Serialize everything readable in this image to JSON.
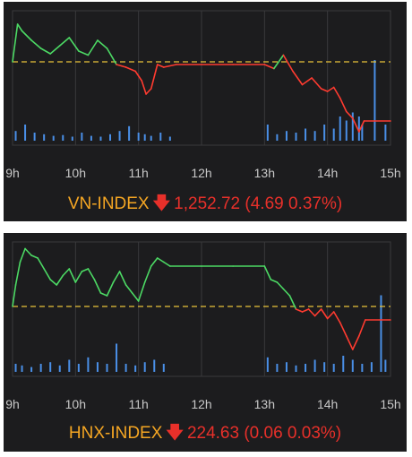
{
  "chart_data": [
    {
      "type": "line",
      "title": "VN-INDEX",
      "direction_icon": "arrow-down-icon",
      "value_text": "1,252.72 (4.69 0.37%)",
      "x_tick_labels": [
        "9h",
        "10h",
        "11h",
        "12h",
        "13h",
        "14h",
        "15h"
      ],
      "x_range_hours": [
        9,
        15
      ],
      "reference_level": 0.62,
      "grid": true,
      "colors": {
        "up": "#4cd964",
        "down": "#ff3b30",
        "reference": "#e8c23a",
        "volume": "#4a8fe7",
        "title": "#f5a623",
        "value": "#e8302a"
      },
      "series": [
        {
          "x": [
            9.0,
            9.08,
            9.15,
            9.3,
            9.45,
            9.6,
            9.75,
            9.9,
            10.05,
            10.2,
            10.35,
            10.5,
            10.65,
            10.8,
            10.95,
            11.05,
            11.12,
            11.2,
            11.3,
            11.4,
            11.6,
            12.0,
            12.5,
            13.0,
            13.15,
            13.3,
            13.45,
            13.6,
            13.75,
            13.9,
            14.0,
            14.1,
            14.2,
            14.3,
            14.4,
            14.5,
            14.58,
            15.0
          ],
          "y": [
            0.62,
            0.9,
            0.85,
            0.78,
            0.72,
            0.68,
            0.74,
            0.8,
            0.7,
            0.67,
            0.78,
            0.72,
            0.6,
            0.58,
            0.55,
            0.48,
            0.38,
            0.42,
            0.6,
            0.58,
            0.6,
            0.6,
            0.6,
            0.6,
            0.57,
            0.67,
            0.55,
            0.45,
            0.5,
            0.42,
            0.4,
            0.43,
            0.35,
            0.25,
            0.2,
            0.1,
            0.18,
            0.18
          ]
        }
      ],
      "volume": {
        "x": [
          9.05,
          9.2,
          9.35,
          9.5,
          9.65,
          9.8,
          9.95,
          10.1,
          10.25,
          10.4,
          10.55,
          10.7,
          10.85,
          11.0,
          11.1,
          11.2,
          11.35,
          11.5,
          13.05,
          13.2,
          13.35,
          13.5,
          13.65,
          13.8,
          13.95,
          14.1,
          14.2,
          14.3,
          14.4,
          14.5,
          14.55,
          14.75,
          14.92
        ],
        "y": [
          0.12,
          0.2,
          0.1,
          0.08,
          0.06,
          0.07,
          0.05,
          0.1,
          0.06,
          0.05,
          0.08,
          0.12,
          0.18,
          0.1,
          0.08,
          0.06,
          0.1,
          0.05,
          0.2,
          0.08,
          0.12,
          0.1,
          0.15,
          0.12,
          0.2,
          0.15,
          0.3,
          0.25,
          0.35,
          0.3,
          0.2,
          1.0,
          0.2
        ]
      }
    },
    {
      "type": "line",
      "title": "HNX-INDEX",
      "direction_icon": "arrow-down-icon",
      "value_text": "224.63 (0.06 0.03%)",
      "x_tick_labels": [
        "9h",
        "10h",
        "11h",
        "12h",
        "13h",
        "14h",
        "15h"
      ],
      "x_range_hours": [
        9,
        15
      ],
      "reference_level": 0.52,
      "grid": true,
      "colors": {
        "up": "#4cd964",
        "down": "#ff3b30",
        "reference": "#e8c23a",
        "volume": "#4a8fe7",
        "title": "#f5a623",
        "value": "#e8302a"
      },
      "series": [
        {
          "x": [
            9.0,
            9.05,
            9.12,
            9.2,
            9.3,
            9.4,
            9.5,
            9.6,
            9.7,
            9.8,
            9.9,
            10.0,
            10.1,
            10.2,
            10.3,
            10.4,
            10.5,
            10.6,
            10.7,
            10.8,
            10.9,
            11.0,
            11.1,
            11.2,
            11.3,
            11.4,
            11.5,
            12.0,
            12.5,
            13.0,
            13.1,
            13.2,
            13.3,
            13.4,
            13.5,
            13.6,
            13.7,
            13.8,
            13.9,
            14.0,
            14.1,
            14.2,
            14.3,
            14.4,
            14.5,
            14.6,
            15.0
          ],
          "y": [
            0.52,
            0.68,
            0.85,
            0.95,
            0.9,
            0.88,
            0.8,
            0.72,
            0.68,
            0.75,
            0.8,
            0.7,
            0.78,
            0.8,
            0.72,
            0.62,
            0.6,
            0.7,
            0.78,
            0.68,
            0.62,
            0.56,
            0.7,
            0.82,
            0.88,
            0.85,
            0.82,
            0.82,
            0.82,
            0.82,
            0.72,
            0.7,
            0.65,
            0.6,
            0.5,
            0.48,
            0.5,
            0.45,
            0.5,
            0.43,
            0.48,
            0.4,
            0.3,
            0.2,
            0.3,
            0.42,
            0.42
          ]
        }
      ],
      "volume": {
        "x": [
          9.05,
          9.15,
          9.3,
          9.45,
          9.6,
          9.75,
          9.9,
          10.05,
          10.2,
          10.35,
          10.5,
          10.65,
          10.8,
          10.95,
          11.1,
          11.25,
          11.4,
          13.05,
          13.2,
          13.35,
          13.5,
          13.65,
          13.8,
          13.95,
          14.1,
          14.25,
          14.4,
          14.55,
          14.7,
          14.85,
          14.92
        ],
        "y": [
          0.1,
          0.08,
          0.06,
          0.1,
          0.12,
          0.08,
          0.15,
          0.1,
          0.18,
          0.12,
          0.1,
          0.35,
          0.1,
          0.08,
          0.12,
          0.15,
          0.1,
          0.18,
          0.1,
          0.12,
          0.08,
          0.1,
          0.15,
          0.12,
          0.1,
          0.2,
          0.15,
          0.1,
          0.12,
          0.95,
          0.15
        ]
      }
    }
  ]
}
